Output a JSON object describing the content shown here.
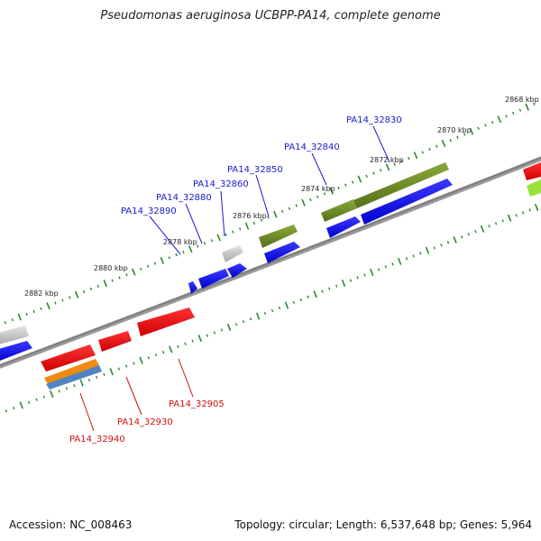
{
  "title": "Pseudomonas aeruginosa UCBPP-PA14, complete genome",
  "accession": "Accession: NC_008463",
  "summary": "Topology: circular; Length: 6,537,648 bp; Genes: 5,964",
  "colors": {
    "forward_label": "#1a1acc",
    "reverse_label": "#cc1111",
    "backbone": "#888888",
    "ticks": "#2a8a2a"
  },
  "kbp_labels": [
    "2868 kbp",
    "2870 kbp",
    "2872 kbp",
    "2874 kbp",
    "2876 kbp",
    "2878 kbp",
    "2880 kbp",
    "2882 kbp"
  ],
  "forward_genes": [
    "PA14_32830",
    "PA14_32840",
    "PA14_32850",
    "PA14_32860",
    "PA14_32880",
    "PA14_32890"
  ],
  "reverse_genes": [
    "PA14_32905",
    "PA14_32930",
    "PA14_32940"
  ]
}
